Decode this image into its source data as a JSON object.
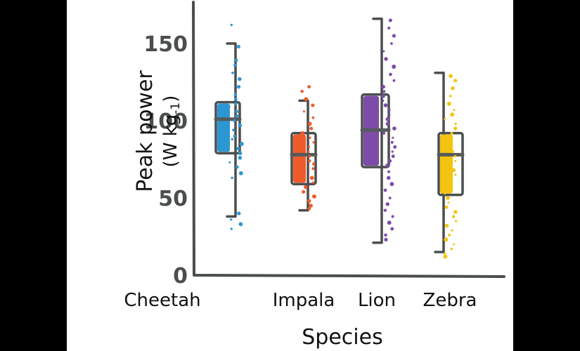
{
  "chart_data": {
    "type": "box",
    "xlabel": "Species",
    "ylabel_line1": "Peak power",
    "ylabel_unit_prefix": "(W kg",
    "ylabel_unit_exp": "-1",
    "ylabel_unit_suffix": ")",
    "y_ticks": [
      0,
      50,
      100,
      150
    ],
    "ylim": [
      0,
      165
    ],
    "grid": false,
    "categories": [
      "Cheetah",
      "Impala",
      "Lion",
      "Zebra"
    ],
    "series": [
      {
        "category": "Cheetah",
        "color": "#2d97d3",
        "min": 38,
        "q1": 79,
        "median": 101,
        "q3": 112,
        "max": 150,
        "points": [
          162,
          148,
          139,
          136,
          131,
          127,
          122,
          117,
          114,
          111,
          109,
          106,
          103,
          100,
          97,
          94,
          90,
          88,
          85,
          82,
          79,
          76,
          73,
          70,
          66,
          63,
          40,
          36,
          33,
          30
        ]
      },
      {
        "category": "Impala",
        "color": "#ef5b2a",
        "min": 42,
        "q1": 59,
        "median": 78,
        "q3": 92,
        "max": 113,
        "points": [
          122,
          119,
          114,
          110,
          106,
          102,
          98,
          95,
          92,
          89,
          86,
          83,
          80,
          77,
          74,
          72,
          69,
          66,
          63,
          60,
          57,
          54,
          51,
          48,
          45,
          43
        ]
      },
      {
        "category": "Lion",
        "color": "#7d4ca8",
        "min": 21,
        "q1": 70,
        "median": 94,
        "q3": 117,
        "max": 166,
        "points": [
          165,
          160,
          155,
          150,
          145,
          140,
          135,
          130,
          126,
          122,
          119,
          116,
          113,
          110,
          107,
          104,
          101,
          98,
          95,
          92,
          89,
          86,
          83,
          80,
          77,
          74,
          71,
          67,
          63,
          59,
          55,
          50,
          46,
          42,
          38,
          34,
          30,
          26,
          23
        ]
      },
      {
        "category": "Zebra",
        "color": "#f2c40f",
        "min": 15,
        "q1": 52,
        "median": 78,
        "q3": 92,
        "max": 131,
        "points": [
          129,
          126,
          121,
          116,
          111,
          107,
          104,
          101,
          98,
          95,
          92,
          89,
          86,
          83,
          80,
          77,
          74,
          71,
          68,
          65,
          62,
          59,
          56,
          53,
          50,
          47,
          44,
          41,
          38,
          35,
          32,
          29,
          26,
          23,
          20,
          17,
          14,
          12
        ]
      }
    ]
  }
}
